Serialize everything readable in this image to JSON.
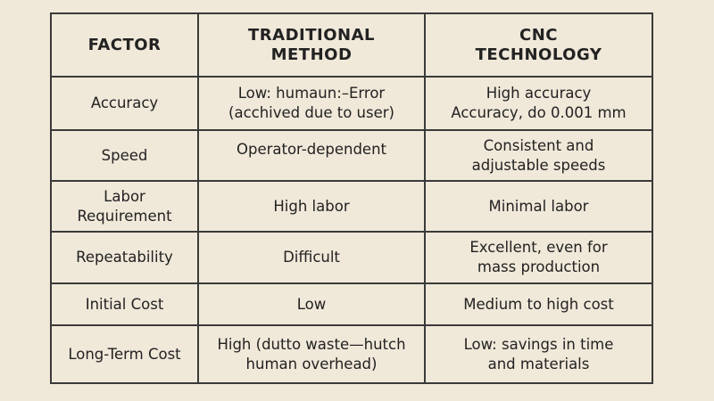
{
  "table": {
    "headers": [
      "FACTOR",
      "TRADITIONAL\nMETHOD",
      "CNC\nTECHNOLOGY"
    ],
    "rows": [
      [
        "Accuracy",
        "Low: humaun:–Error\n(acchived due to user)",
        "High accuracy\nAccuracy, do 0.001 mm"
      ],
      [
        "Speed",
        "Operator-dependent",
        "Consistent and\nadjustable speeds"
      ],
      [
        "Labor\nRequirement",
        "High labor",
        "Minimal labor"
      ],
      [
        "Repeatability",
        "Difficult",
        "Excellent, even for\nmass production"
      ],
      [
        "Initial Cost",
        "Low",
        "Medium to high cost"
      ],
      [
        "Long-Term Cost",
        "High (dutto waste—hutch\nhuman overhead)",
        "Low: savings in time\nand materials"
      ]
    ]
  },
  "colors": {
    "background": "#f0e8d9",
    "border": "#3a3a3a",
    "text": "#222222"
  }
}
